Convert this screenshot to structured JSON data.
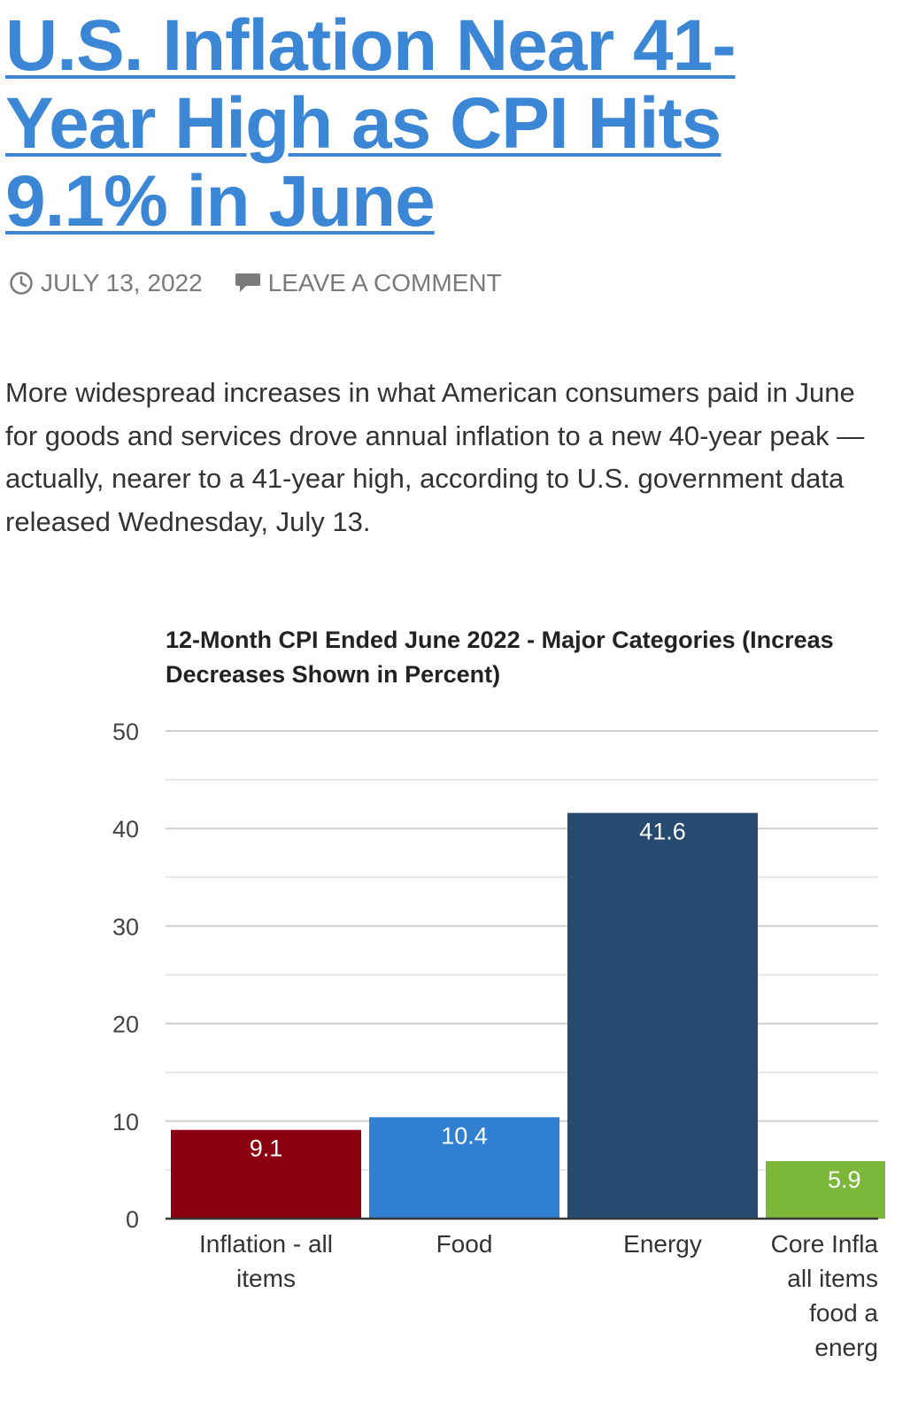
{
  "article": {
    "title": "U.S. Inflation Near 41-Year High as CPI Hits 9.1% in June",
    "date": "JULY 13, 2022",
    "comment_link": "LEAVE A COMMENT",
    "body": "More widespread increases in what American consumers paid in June for goods and services drove annual inflation to a new 40-year peak — actually, nearer to a 41-year high, according to U.S. government data released Wednesday, July 13."
  },
  "icons": {
    "date": "clock-icon",
    "comment": "speech-bubble-icon"
  },
  "colors": {
    "link": "#3b87d6",
    "meta": "#7a7a7a",
    "bar_inflation": "#8b0010",
    "bar_food": "#3180d2",
    "bar_energy": "#274a70",
    "bar_core": "#7bb83a"
  },
  "chart_data": {
    "type": "bar",
    "title_lines": [
      "12-Month CPI Ended June 2022 - Major Categories (Increas",
      "Decreases Shown in Percent)"
    ],
    "categories": [
      [
        "Inflation - all",
        "items"
      ],
      [
        "Food"
      ],
      [
        "Energy"
      ],
      [
        "Core Infla",
        "all items",
        "food a",
        "energ"
      ]
    ],
    "values": [
      9.1,
      10.4,
      41.6,
      5.9
    ],
    "data_labels": [
      "9.1",
      "10.4",
      "41.6",
      "5.9"
    ],
    "ylim": [
      0,
      50
    ],
    "yticks": [
      0,
      10,
      20,
      30,
      40,
      50
    ],
    "grid": true,
    "legend": "none"
  }
}
